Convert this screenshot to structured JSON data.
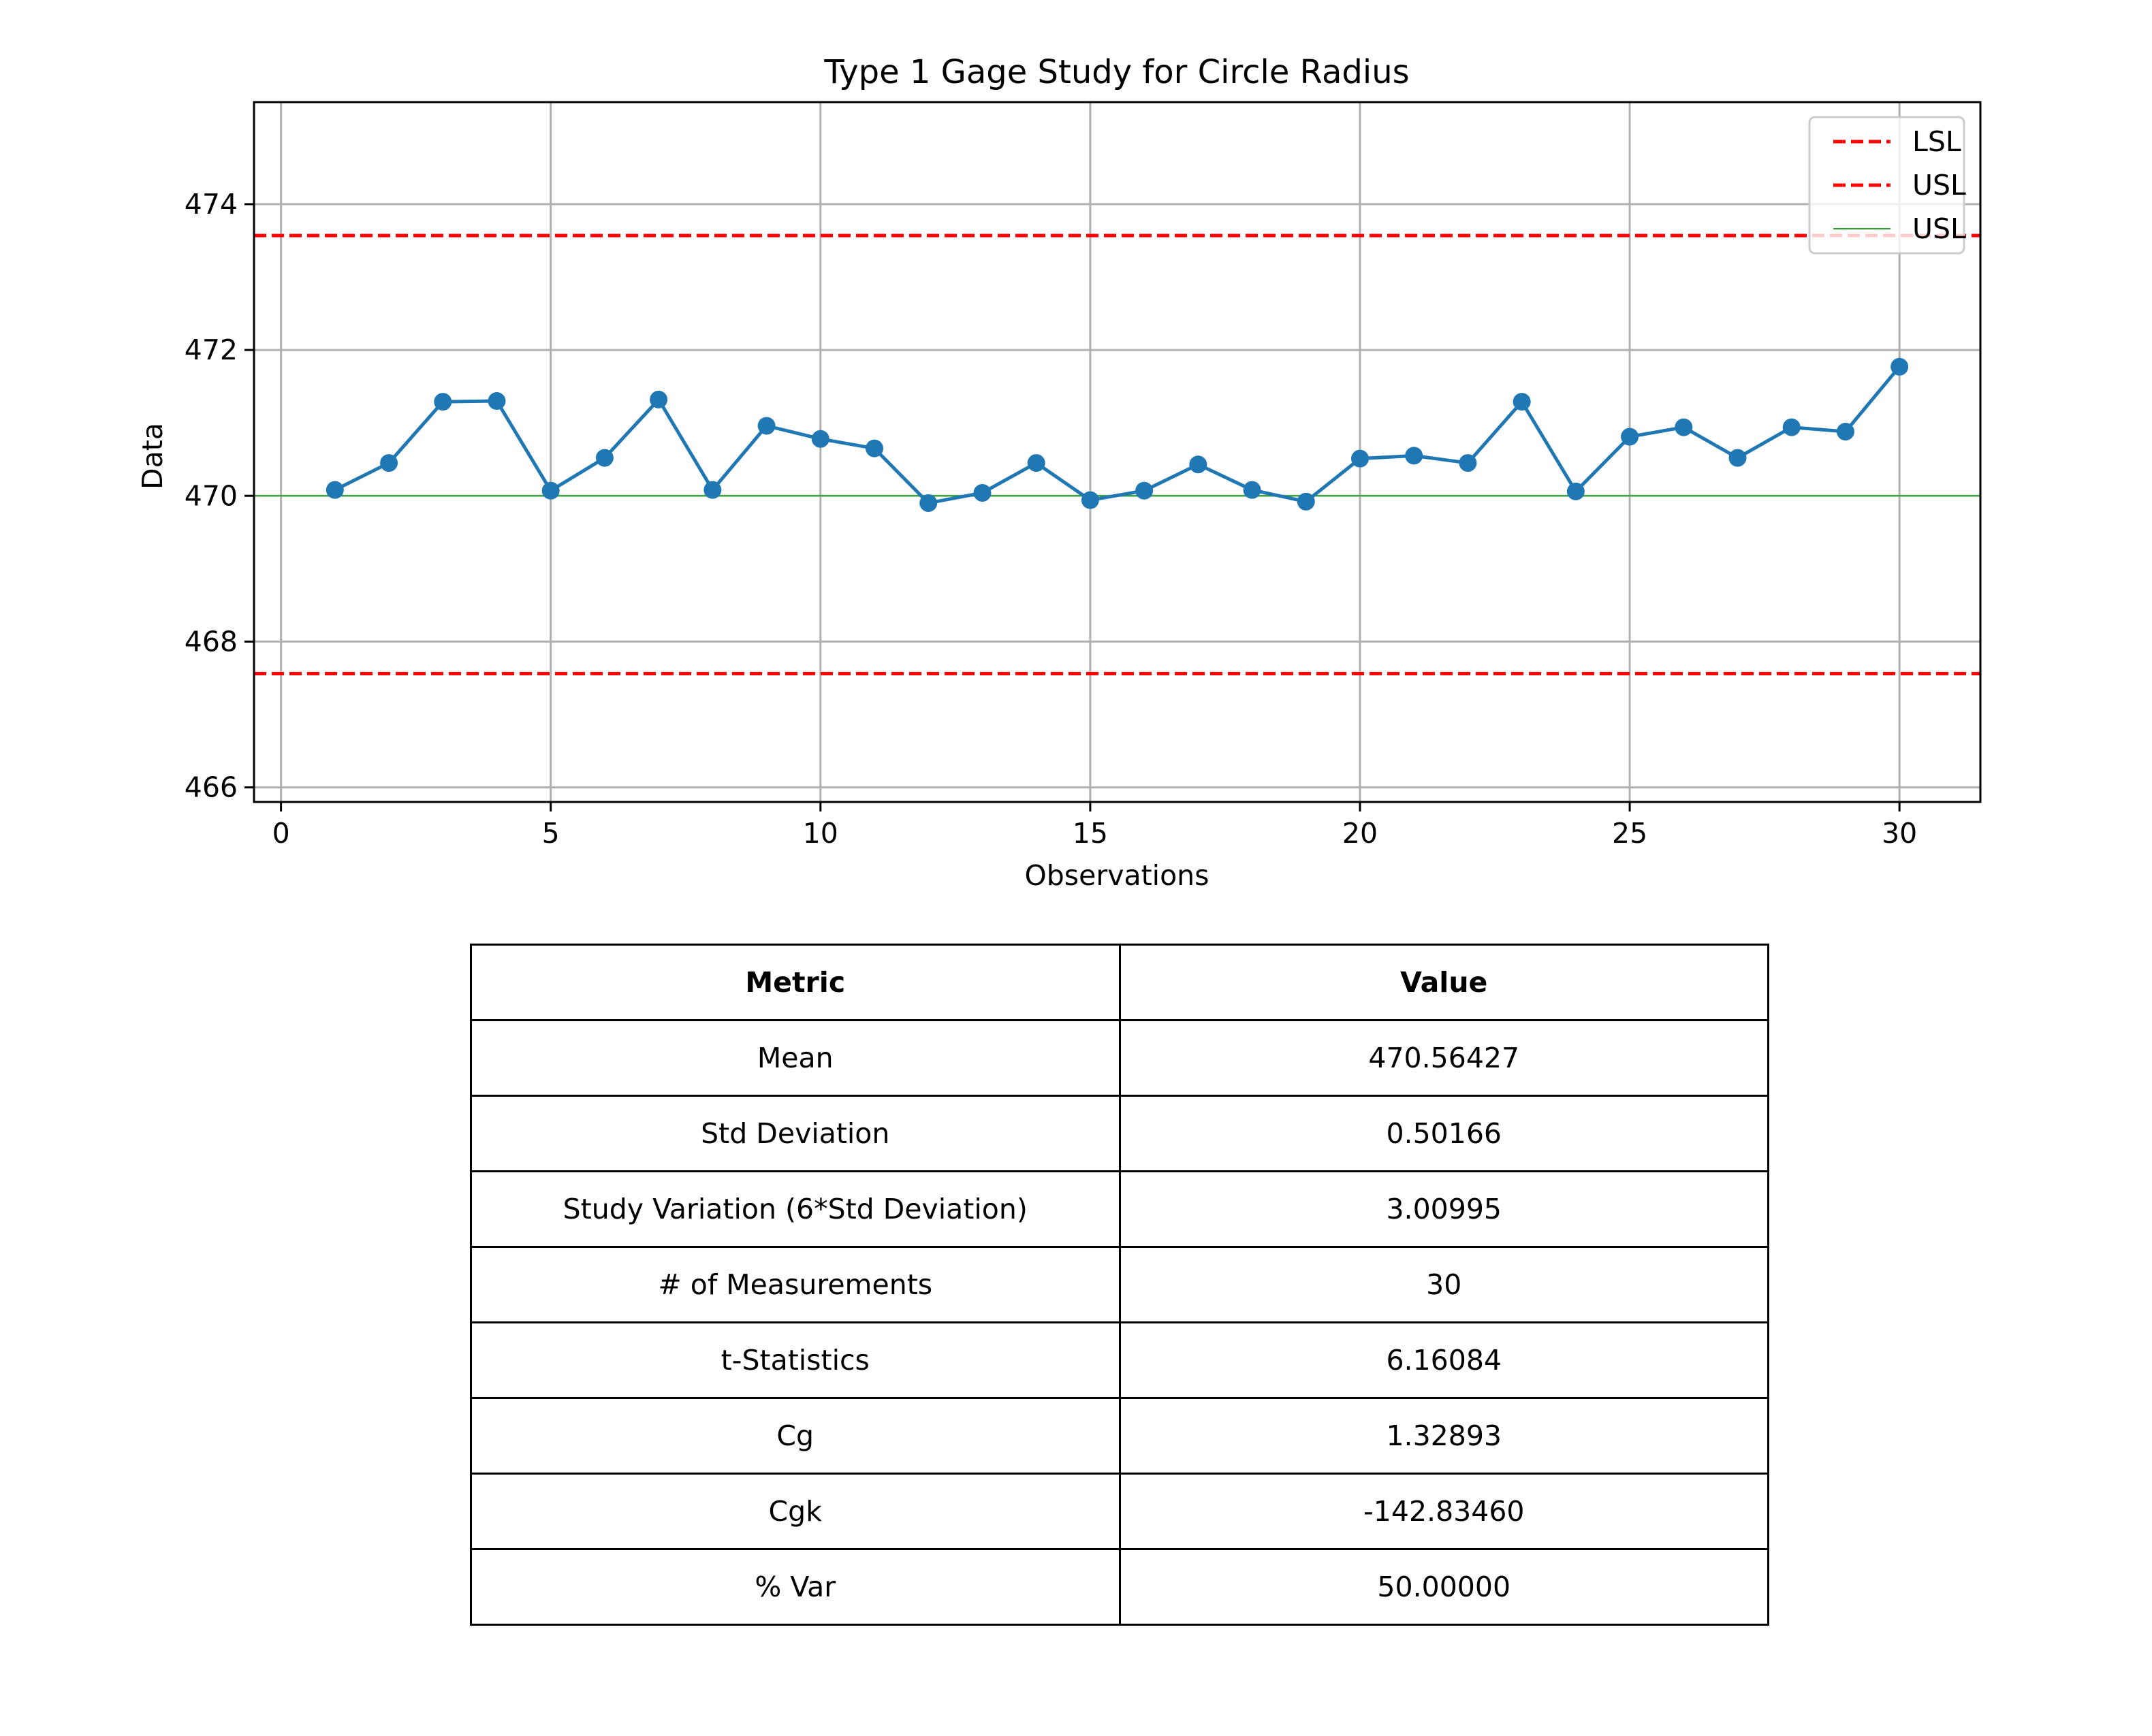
{
  "chart_data": {
    "type": "line",
    "title": "Type 1 Gage Study for Circle Radius",
    "xlabel": "Observations",
    "ylabel": "Data",
    "xlim": [
      -0.5,
      31.5
    ],
    "ylim": [
      465.8,
      475.4
    ],
    "xticks": [
      0,
      5,
      10,
      15,
      20,
      25,
      30
    ],
    "yticks": [
      466,
      468,
      470,
      472,
      474
    ],
    "grid": true,
    "legend_position": "top-right",
    "series": [
      {
        "x": [
          1,
          2,
          3,
          4,
          5,
          6,
          7,
          8,
          9,
          10,
          11,
          12,
          13,
          14,
          15,
          16,
          17,
          18,
          19,
          20,
          21,
          22,
          23,
          24,
          25,
          26,
          27,
          28,
          29,
          30
        ],
        "values": [
          470.08,
          470.45,
          471.29,
          471.3,
          470.07,
          470.52,
          471.32,
          470.08,
          470.96,
          470.78,
          470.65,
          469.9,
          470.04,
          470.45,
          469.94,
          470.07,
          470.43,
          470.08,
          469.92,
          470.51,
          470.55,
          470.45,
          471.29,
          470.06,
          470.81,
          470.94,
          470.52,
          470.94,
          470.88,
          471.77
        ],
        "color": "#1f77b4",
        "marker": "circle"
      }
    ],
    "reference_lines": [
      {
        "name": "LSL",
        "y": 467.56,
        "style": "dashed",
        "color": "#ff0000"
      },
      {
        "name": "USL",
        "y": 473.57,
        "style": "dashed",
        "color": "#ff0000"
      },
      {
        "name": "USL",
        "y": 470.0,
        "style": "solid",
        "color": "#2ca02c"
      }
    ]
  },
  "table": {
    "headers": [
      "Metric",
      "Value"
    ],
    "rows": [
      [
        "Mean",
        "470.56427"
      ],
      [
        "Std Deviation",
        "0.50166"
      ],
      [
        "Study Variation (6*Std Deviation)",
        "3.00995"
      ],
      [
        "# of Measurements",
        "30"
      ],
      [
        "t-Statistics",
        "6.16084"
      ],
      [
        "Cg",
        "1.32893"
      ],
      [
        "Cgk",
        "-142.83460"
      ],
      [
        "% Var",
        "50.00000"
      ]
    ]
  }
}
